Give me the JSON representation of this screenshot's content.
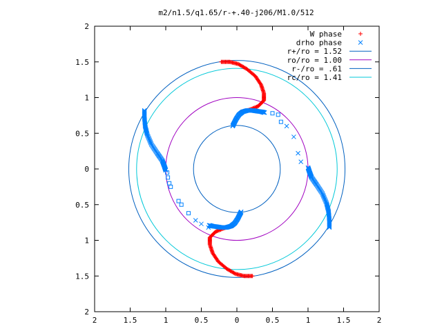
{
  "chart_data": {
    "type": "scatter",
    "title": "m2/n1.5/q1.65/r-+.40-j206/M1.0/512",
    "xlabel": "",
    "ylabel": "",
    "xlim": [
      -2,
      2
    ],
    "ylim": [
      -2,
      2
    ],
    "x_ticks": [
      "2",
      "1.5",
      "1",
      "0.5",
      "0",
      "0.5",
      "1",
      "1.5",
      "2"
    ],
    "y_ticks": [
      "2",
      "1.5",
      "1",
      "0.5",
      "0",
      "0.5",
      "1",
      "1.5",
      "2"
    ],
    "x_tick_values": [
      -2,
      -1.5,
      -1,
      -0.5,
      0,
      0.5,
      1,
      1.5,
      2
    ],
    "y_tick_values": [
      2,
      1.5,
      1,
      0.5,
      0,
      -0.5,
      -1,
      -1.5,
      -2
    ],
    "grid": false,
    "legend_position": "top-right",
    "series": [
      {
        "name": "W phase",
        "marker": "plus",
        "color": "#ff0000"
      },
      {
        "name": "drho phase",
        "marker": "x",
        "color": "#0080ff"
      },
      {
        "name": "r+/ro = 1.52",
        "marker": "line",
        "color": "#0060c0",
        "radius": 1.52
      },
      {
        "name": "ro/ro = 1.00",
        "marker": "line",
        "color": "#a000c0",
        "radius": 1.0
      },
      {
        "name": "r-/ro = .61",
        "marker": "line",
        "color": "#0060c0",
        "radius": 0.61
      },
      {
        "name": "rc/ro = 1.41",
        "marker": "line",
        "color": "#00c8d8",
        "radius": 1.41
      }
    ],
    "w_phase_arm": [
      [
        -0.22,
        1.5
      ],
      [
        -0.1,
        1.5
      ],
      [
        0.02,
        1.47
      ],
      [
        0.14,
        1.4
      ],
      [
        0.26,
        1.3
      ],
      [
        0.34,
        1.18
      ],
      [
        0.38,
        1.06
      ],
      [
        0.38,
        0.96
      ],
      [
        0.3,
        0.88
      ],
      [
        0.18,
        0.83
      ],
      [
        0.06,
        0.8
      ]
    ],
    "drho_inner_arm": [
      [
        -0.06,
        0.6
      ],
      [
        -0.04,
        0.64
      ],
      [
        -0.01,
        0.7
      ],
      [
        0.03,
        0.76
      ],
      [
        0.08,
        0.8
      ],
      [
        0.15,
        0.82
      ],
      [
        0.22,
        0.82
      ],
      [
        0.28,
        0.81
      ],
      [
        0.35,
        0.8
      ],
      [
        0.39,
        0.79
      ]
    ],
    "drho_outer_arm": [
      [
        -1.3,
        0.82
      ],
      [
        -1.3,
        0.72
      ],
      [
        -1.29,
        0.6
      ],
      [
        -1.26,
        0.48
      ],
      [
        -1.2,
        0.34
      ],
      [
        -1.12,
        0.22
      ],
      [
        -1.05,
        0.12
      ],
      [
        -1.02,
        0.04
      ],
      [
        -1.0,
        -0.02
      ]
    ],
    "drho_squares": [
      [
        -0.98,
        -0.05
      ],
      [
        -0.97,
        -0.12
      ],
      [
        -0.95,
        -0.2
      ],
      [
        -0.93,
        -0.25
      ],
      [
        -0.82,
        -0.45
      ],
      [
        -0.78,
        -0.5
      ],
      [
        -0.68,
        -0.62
      ],
      [
        0.5,
        0.78
      ],
      [
        0.58,
        0.76
      ],
      [
        0.62,
        0.66
      ]
    ],
    "drho_x_markers": [
      [
        -0.58,
        -0.72
      ],
      [
        -0.5,
        -0.77
      ],
      [
        -0.4,
        -0.82
      ],
      [
        0.7,
        0.6
      ],
      [
        0.8,
        0.45
      ],
      [
        0.86,
        0.22
      ],
      [
        0.9,
        0.1
      ]
    ]
  }
}
